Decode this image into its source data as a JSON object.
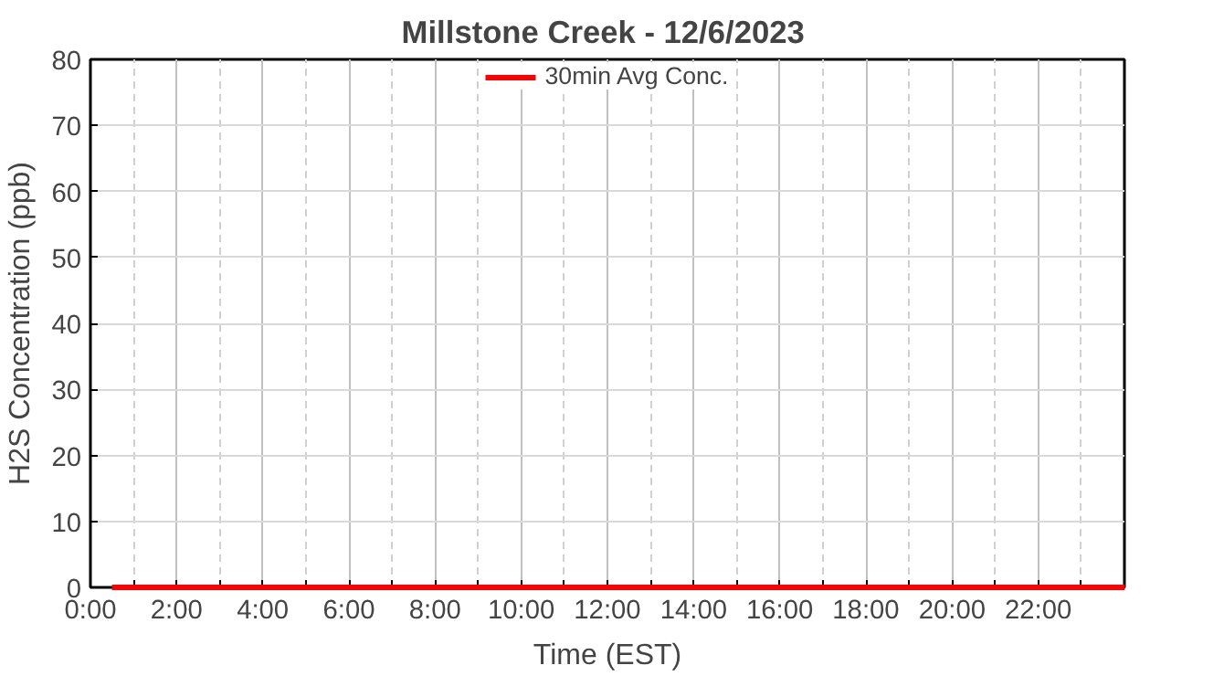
{
  "chart_data": {
    "type": "line",
    "title": "Millstone Creek  - 12/6/2023",
    "xlabel": "Time (EST)",
    "ylabel": "H2S Concentration (ppb)",
    "x": [
      0.5,
      24
    ],
    "series": [
      {
        "name": "30min Avg Conc.",
        "color": "#ff0000",
        "values": [
          0,
          0
        ]
      }
    ],
    "xlim": [
      0,
      24
    ],
    "ylim": [
      0,
      80
    ],
    "xticks": [
      {
        "value": 0,
        "label": "0:00"
      },
      {
        "value": 1,
        "label": null
      },
      {
        "value": 2,
        "label": "2:00"
      },
      {
        "value": 3,
        "label": null
      },
      {
        "value": 4,
        "label": "4:00"
      },
      {
        "value": 5,
        "label": null
      },
      {
        "value": 6,
        "label": "6:00"
      },
      {
        "value": 7,
        "label": null
      },
      {
        "value": 8,
        "label": "8:00"
      },
      {
        "value": 9,
        "label": null
      },
      {
        "value": 10,
        "label": "10:00"
      },
      {
        "value": 11,
        "label": null
      },
      {
        "value": 12,
        "label": "12:00"
      },
      {
        "value": 13,
        "label": null
      },
      {
        "value": 14,
        "label": "14:00"
      },
      {
        "value": 15,
        "label": null
      },
      {
        "value": 16,
        "label": "16:00"
      },
      {
        "value": 17,
        "label": null
      },
      {
        "value": 18,
        "label": "18:00"
      },
      {
        "value": 19,
        "label": null
      },
      {
        "value": 20,
        "label": "20:00"
      },
      {
        "value": 21,
        "label": null
      },
      {
        "value": 22,
        "label": "22:00"
      },
      {
        "value": 23,
        "label": null
      }
    ],
    "yticks": [
      0,
      10,
      20,
      30,
      40,
      50,
      60,
      70,
      80
    ],
    "grid": true,
    "legend": "top",
    "marker": "none",
    "line_style": "solid"
  }
}
